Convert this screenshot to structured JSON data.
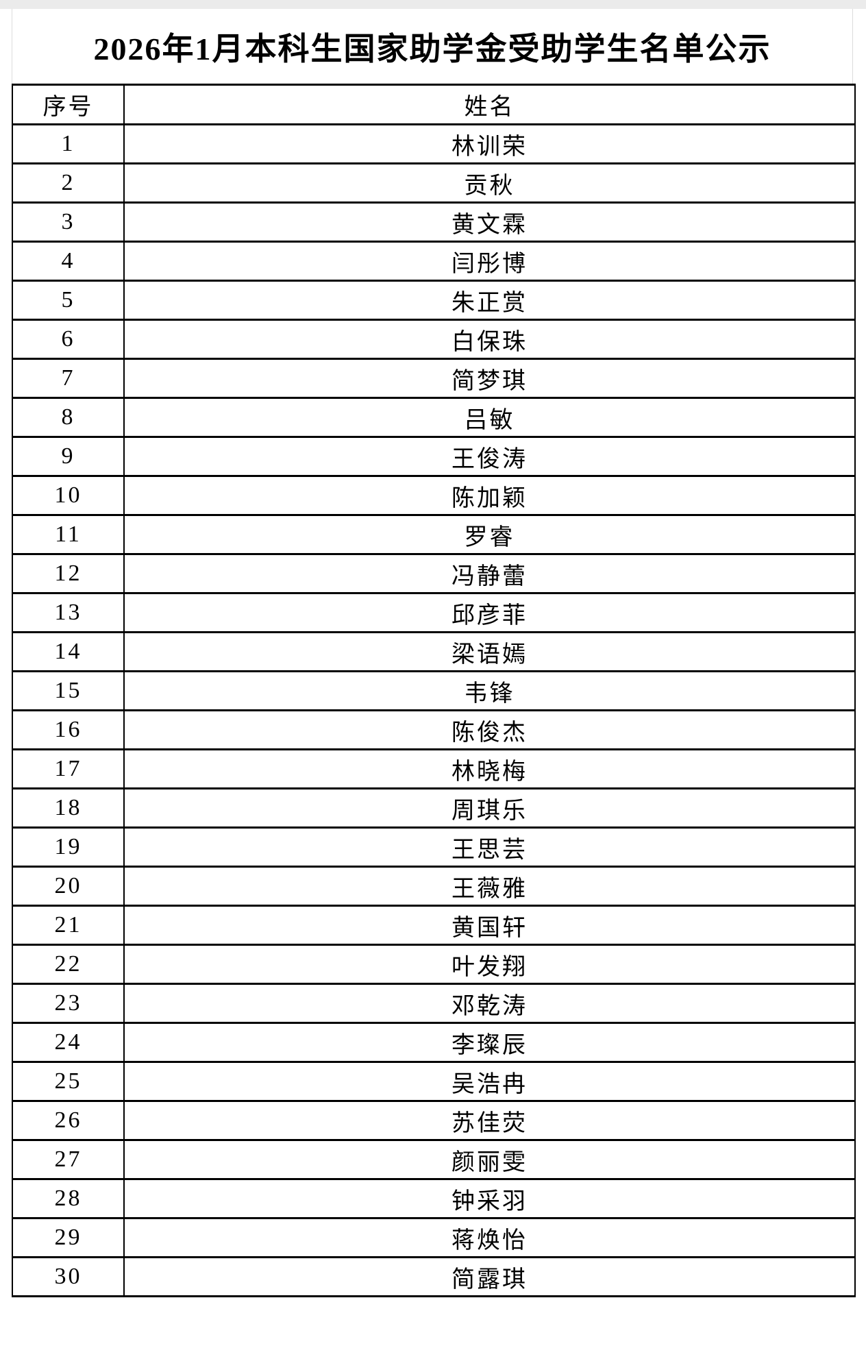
{
  "page": {
    "title": "2026年1月本科生国家助学金受助学生名单公示"
  },
  "table": {
    "columns": [
      "序号",
      "姓名"
    ],
    "rows": [
      {
        "no": "1",
        "name": "林训荣"
      },
      {
        "no": "2",
        "name": "贡秋"
      },
      {
        "no": "3",
        "name": "黄文霖"
      },
      {
        "no": "4",
        "name": "闫彤博"
      },
      {
        "no": "5",
        "name": "朱正赏"
      },
      {
        "no": "6",
        "name": "白保珠"
      },
      {
        "no": "7",
        "name": "简梦琪"
      },
      {
        "no": "8",
        "name": "吕敏"
      },
      {
        "no": "9",
        "name": "王俊涛"
      },
      {
        "no": "10",
        "name": "陈加颖"
      },
      {
        "no": "11",
        "name": "罗睿"
      },
      {
        "no": "12",
        "name": "冯静蕾"
      },
      {
        "no": "13",
        "name": "邱彦菲"
      },
      {
        "no": "14",
        "name": "梁语嫣"
      },
      {
        "no": "15",
        "name": "韦锋"
      },
      {
        "no": "16",
        "name": "陈俊杰"
      },
      {
        "no": "17",
        "name": "林晓梅"
      },
      {
        "no": "18",
        "name": "周琪乐"
      },
      {
        "no": "19",
        "name": "王思芸"
      },
      {
        "no": "20",
        "name": "王薇雅"
      },
      {
        "no": "21",
        "name": "黄国轩"
      },
      {
        "no": "22",
        "name": "叶发翔"
      },
      {
        "no": "23",
        "name": "邓乾涛"
      },
      {
        "no": "24",
        "name": "李璨辰"
      },
      {
        "no": "25",
        "name": "吴浩冉"
      },
      {
        "no": "26",
        "name": "苏佳荧"
      },
      {
        "no": "27",
        "name": "颜丽雯"
      },
      {
        "no": "28",
        "name": "钟采羽"
      },
      {
        "no": "29",
        "name": "蒋焕怡"
      },
      {
        "no": "30",
        "name": "简露琪"
      }
    ]
  },
  "colors": {
    "table_border": "#000000",
    "top_strip": "#ebebeb",
    "faint_gridline": "#dcdcdc",
    "text": "#000000"
  }
}
